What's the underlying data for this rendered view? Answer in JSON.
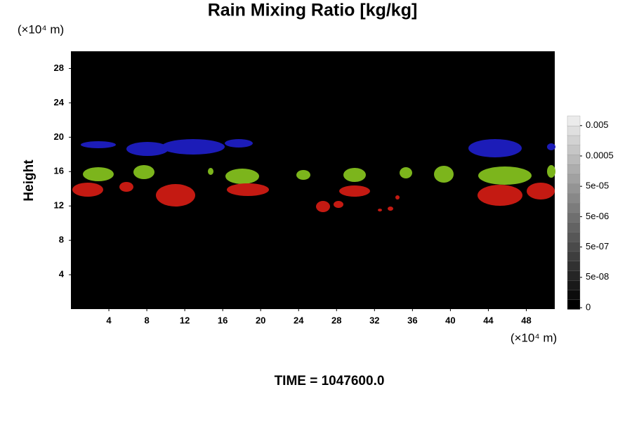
{
  "chart_data": {
    "type": "heatmap",
    "title": "Rain Mixing Ratio [kg/kg]",
    "y_label": "Height",
    "x_unit": "(×10⁴ m)",
    "y_unit": "(×10⁴ m)",
    "footer": "TIME = 1047600.0",
    "xlim": [
      0,
      51
    ],
    "xticks": [
      4,
      8,
      12,
      16,
      20,
      24,
      28,
      32,
      36,
      40,
      44,
      48
    ],
    "ylim": [
      0,
      30
    ],
    "yticks": [
      4,
      8,
      12,
      16,
      20,
      24,
      28
    ],
    "colorbar_ticks": [
      0,
      {
        "value": 5e-08,
        "label": "5e-08"
      },
      {
        "value": 5e-07,
        "label": "5e-07"
      },
      {
        "value": 5e-06,
        "label": "5e-06"
      },
      {
        "value": 5e-05,
        "label": "5e-05"
      },
      0.0005,
      0.005
    ]
  }
}
